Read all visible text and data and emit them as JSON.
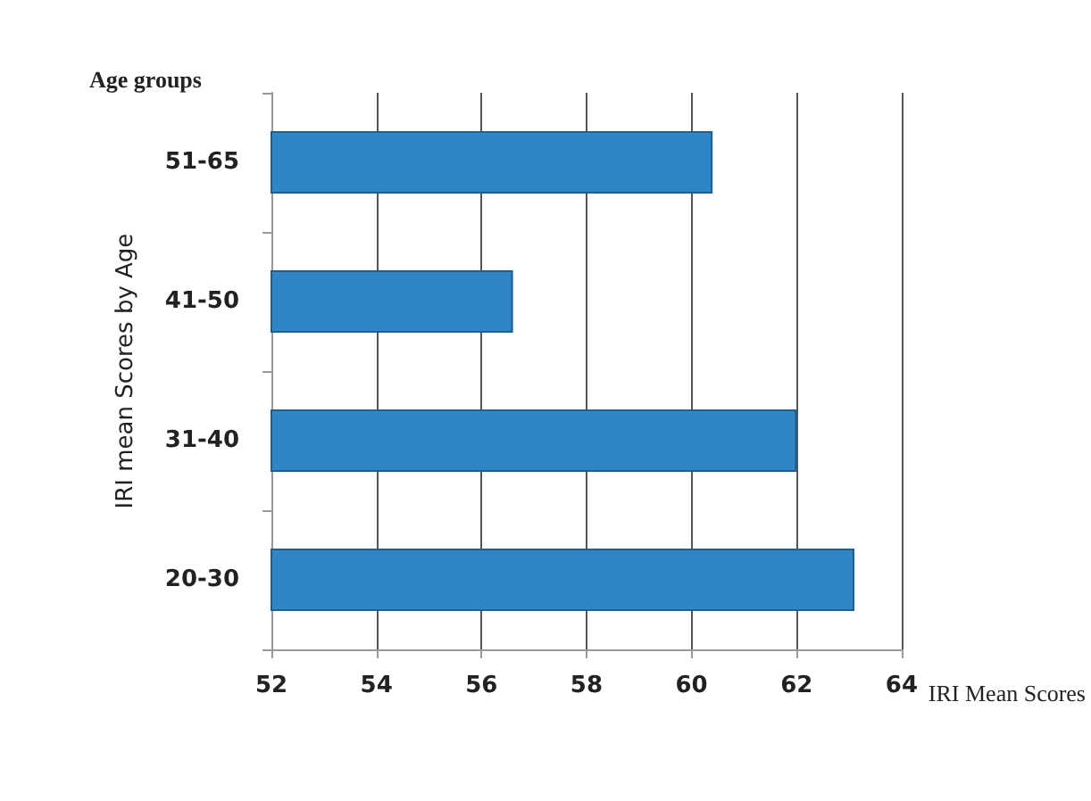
{
  "chart_data": {
    "type": "bar",
    "orientation": "horizontal",
    "categories": [
      "51-65",
      "41-50",
      "31-40",
      "20-30"
    ],
    "values": [
      60.4,
      56.6,
      62.0,
      63.1
    ],
    "color": "#2f86c6",
    "xlim": [
      52,
      64
    ],
    "xticks": [
      52,
      54,
      56,
      58,
      60,
      62,
      64
    ],
    "grid": "x",
    "xlabel": "IRI Mean Scores",
    "ylabel": "IRI mean Scores by Age",
    "annotations": [
      "Age groups"
    ]
  }
}
